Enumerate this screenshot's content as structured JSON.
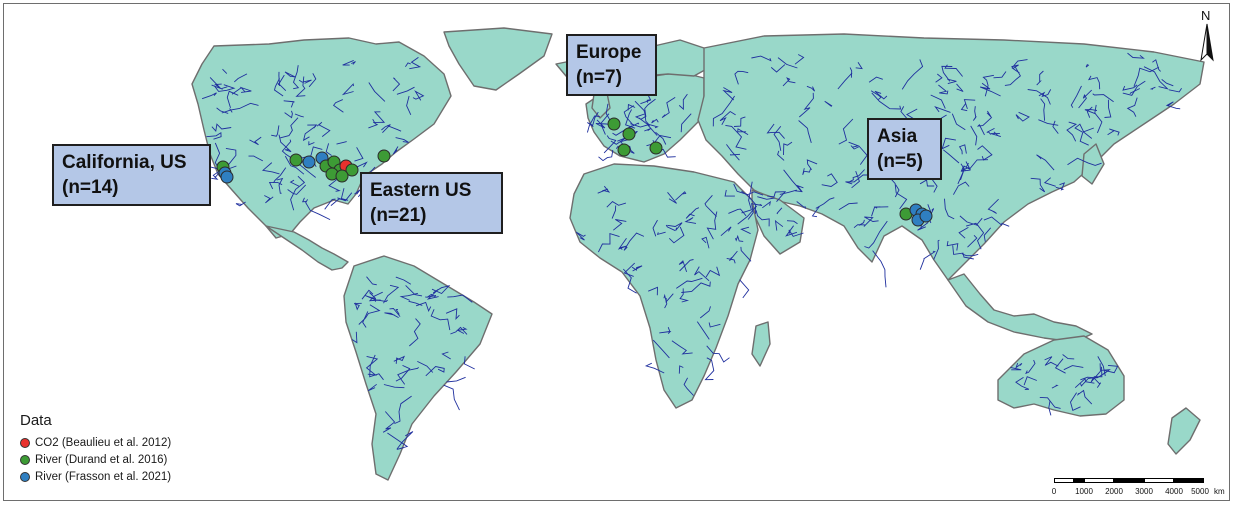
{
  "map": {
    "colors": {
      "land": "#99d8c9",
      "coast": "#6e6e6e",
      "river": "#1f2f9e",
      "ocean": "#ffffff"
    }
  },
  "regions": [
    {
      "id": "california",
      "name": "California, US",
      "count": "(n=14)"
    },
    {
      "id": "eastern-us",
      "name": "Eastern US",
      "count": "(n=21)"
    },
    {
      "id": "europe",
      "name": "Europe",
      "count": "(n=7)"
    },
    {
      "id": "asia",
      "name": "Asia",
      "count": "(n=5)"
    }
  ],
  "legend": {
    "title": "Data",
    "items": [
      {
        "label": "CO2 (Beaulieu et al. 2012)",
        "color": "#e8312d"
      },
      {
        "label": "River (Durand et al. 2016)",
        "color": "#3d9b35"
      },
      {
        "label": "River (Frasson et al. 2021)",
        "color": "#2f7fc1"
      }
    ]
  },
  "north_arrow": {
    "label": "N",
    "icon": "north-arrow-icon"
  },
  "scale_bar": {
    "ticks": [
      "0",
      "1000",
      "2000",
      "3000",
      "4000",
      "5000"
    ],
    "unit": "km"
  }
}
